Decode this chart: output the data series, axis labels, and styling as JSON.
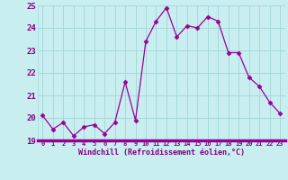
{
  "x": [
    0,
    1,
    2,
    3,
    4,
    5,
    6,
    7,
    8,
    9,
    10,
    11,
    12,
    13,
    14,
    15,
    16,
    17,
    18,
    19,
    20,
    21,
    22,
    23
  ],
  "y": [
    20.1,
    19.5,
    19.8,
    19.2,
    19.6,
    19.7,
    19.3,
    19.8,
    21.6,
    19.9,
    23.4,
    24.3,
    24.9,
    23.6,
    24.1,
    24.0,
    24.5,
    24.3,
    22.9,
    22.9,
    21.8,
    21.4,
    20.7,
    20.2
  ],
  "line_color": "#990099",
  "marker": "D",
  "marker_size": 2.5,
  "bg_color": "#c8eef0",
  "grid_color": "#a8d8dc",
  "xlabel": "Windchill (Refroidissement éolien,°C)",
  "xlabel_color": "#800080",
  "tick_color": "#800080",
  "ylim": [
    19,
    25
  ],
  "xlim": [
    -0.5,
    23.5
  ],
  "yticks": [
    19,
    20,
    21,
    22,
    23,
    24,
    25
  ],
  "xticks": [
    0,
    1,
    2,
    3,
    4,
    5,
    6,
    7,
    8,
    9,
    10,
    11,
    12,
    13,
    14,
    15,
    16,
    17,
    18,
    19,
    20,
    21,
    22,
    23
  ],
  "xtick_labels": [
    "0",
    "1",
    "2",
    "3",
    "4",
    "5",
    "6",
    "7",
    "8",
    "9",
    "10",
    "11",
    "12",
    "13",
    "14",
    "15",
    "16",
    "17",
    "18",
    "19",
    "20",
    "21",
    "22",
    "23"
  ]
}
